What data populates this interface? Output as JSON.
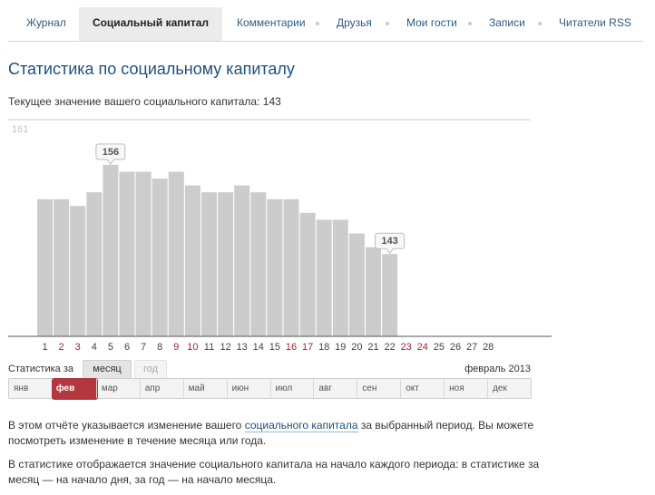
{
  "tabs": [
    {
      "label": "Журнал",
      "active": false
    },
    {
      "label": "Социальный капитал",
      "active": true
    },
    {
      "label": "Комментарии",
      "active": false
    },
    {
      "label": "Друзья",
      "active": false
    },
    {
      "label": "Мои гости",
      "active": false
    },
    {
      "label": "Записи",
      "active": false
    },
    {
      "label": "Читатели RSS",
      "active": false
    }
  ],
  "page": {
    "title": "Статистика по социальному капиталу",
    "current_value_text": "Текущее значение вашего социального капитала: 143"
  },
  "chart_data": {
    "type": "bar",
    "categories": [
      "1",
      "2",
      "3",
      "4",
      "5",
      "6",
      "7",
      "8",
      "9",
      "10",
      "11",
      "12",
      "13",
      "14",
      "15",
      "16",
      "17",
      "18",
      "19",
      "20",
      "21",
      "22",
      "23",
      "24",
      "25",
      "26",
      "27",
      "28"
    ],
    "values": [
      151,
      151,
      150,
      152,
      156,
      155,
      155,
      154,
      155,
      153,
      152,
      152,
      153,
      152,
      151,
      151,
      149,
      148,
      148,
      146,
      144,
      143,
      null,
      null,
      null,
      null,
      null,
      null
    ],
    "weekend_days": [
      "2",
      "3",
      "9",
      "10",
      "16",
      "17",
      "23",
      "24"
    ],
    "ylim": [
      131,
      161
    ],
    "max_label": "161",
    "peak_label": "156",
    "last_label": "143",
    "grid": false,
    "colors": {
      "bar": "#cccccc",
      "weekend_label": "#a4242e",
      "axis": "#555555"
    }
  },
  "period": {
    "stats_for_label": "Статистика за",
    "month_label": "месяц",
    "year_label": "год",
    "selected": "месяц",
    "current": "февраль 2013"
  },
  "months": [
    "янв",
    "фев",
    "мар",
    "апр",
    "май",
    "июн",
    "июл",
    "авг",
    "сен",
    "окт",
    "ноя",
    "дек"
  ],
  "active_month": "фев",
  "description": {
    "p1_before": "В этом отчёте указывается изменение вашего ",
    "p1_link": "социального капитала",
    "p1_after": " за выбранный период. Вы можете посмотреть изменение в течение месяца или года.",
    "p2": "В статистике отображается значение социального капитала на начало каждого периода: в статистике за месяц — на начало дня, за год — на начало месяца."
  },
  "colors": {
    "accent": "#b4363e",
    "link": "#1e4f7d",
    "tab_active_bg": "#ebebeb"
  }
}
